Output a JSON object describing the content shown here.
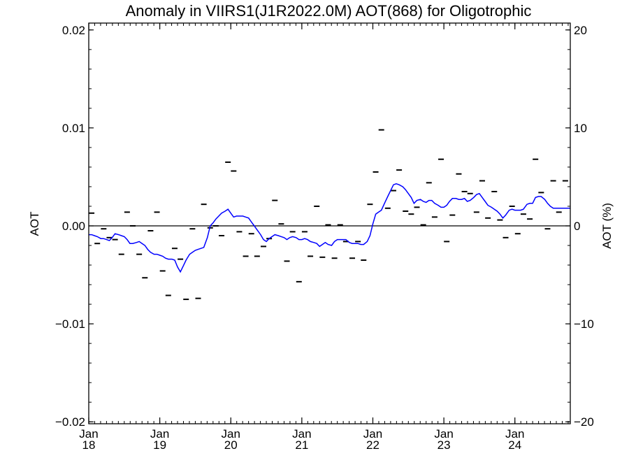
{
  "chart_data": {
    "type": "line",
    "title": "Anomaly in VIIRS1(J1R2022.0M) AOT(868) for Oligotrophic",
    "ylabel": "AOT",
    "ylabel_right": "AOT (%)",
    "xlabel": "",
    "x_range": [
      2018.0,
      2024.78
    ],
    "ylim": [
      -0.0202,
      0.0207
    ],
    "ylim_right": [
      -20.2,
      20.7
    ],
    "y_ticks": [
      {
        "value": 0.02,
        "label": "0.02"
      },
      {
        "value": 0.01,
        "label": "0.01"
      },
      {
        "value": 0.0,
        "label": "0.00"
      },
      {
        "value": -0.01,
        "label": "−0.01"
      },
      {
        "value": -0.02,
        "label": "−0.02"
      }
    ],
    "y_ticks_right": [
      {
        "value": 20,
        "label": "20"
      },
      {
        "value": 10,
        "label": "10"
      },
      {
        "value": 0,
        "label": "0"
      },
      {
        "value": -10,
        "label": "−10"
      },
      {
        "value": -20,
        "label": "−20"
      }
    ],
    "x_ticks": [
      {
        "value": 2018.0,
        "month": "Jan",
        "year": "18"
      },
      {
        "value": 2019.0,
        "month": "Jan",
        "year": "19"
      },
      {
        "value": 2020.0,
        "month": "Jan",
        "year": "20"
      },
      {
        "value": 2021.0,
        "month": "Jan",
        "year": "21"
      },
      {
        "value": 2022.0,
        "month": "Jan",
        "year": "22"
      },
      {
        "value": 2023.0,
        "month": "Jan",
        "year": "23"
      },
      {
        "value": 2024.0,
        "month": "Jan",
        "year": "24"
      }
    ],
    "zero_line": 0.0,
    "grid": false,
    "series": [
      {
        "type": "scatter-dash",
        "color": "#000000",
        "x": [
          2018.04,
          2018.12,
          2018.21,
          2018.29,
          2018.37,
          2018.46,
          2018.54,
          2018.62,
          2018.71,
          2018.79,
          2018.87,
          2018.96,
          2019.04,
          2019.12,
          2019.21,
          2019.29,
          2019.37,
          2019.46,
          2019.54,
          2019.62,
          2019.71,
          2019.79,
          2019.87,
          2019.96,
          2020.04,
          2020.12,
          2020.21,
          2020.29,
          2020.37,
          2020.46,
          2020.54,
          2020.62,
          2020.71,
          2020.79,
          2020.87,
          2020.96,
          2021.04,
          2021.12,
          2021.21,
          2021.29,
          2021.37,
          2021.46,
          2021.54,
          2021.62,
          2021.71,
          2021.79,
          2021.87,
          2021.96,
          2022.04,
          2022.12,
          2022.21,
          2022.29,
          2022.37,
          2022.46,
          2022.54,
          2022.62,
          2022.71,
          2022.79,
          2022.87,
          2022.96,
          2023.04,
          2023.12,
          2023.21,
          2023.29,
          2023.37,
          2023.46,
          2023.54,
          2023.62,
          2023.71,
          2023.79,
          2023.87,
          2023.96,
          2024.04,
          2024.12,
          2024.21,
          2024.29,
          2024.37,
          2024.46,
          2024.54,
          2024.62,
          2024.71
        ],
        "values": [
          0.0013,
          -0.0018,
          -0.0003,
          -0.0012,
          -0.0014,
          -0.0029,
          0.0014,
          0.0,
          -0.0029,
          -0.0053,
          -0.0005,
          0.0014,
          -0.0046,
          -0.0071,
          -0.0023,
          -0.0034,
          -0.0075,
          -0.0003,
          -0.0074,
          0.0022,
          -0.0002,
          0.0,
          -0.001,
          0.0065,
          0.0056,
          -0.0006,
          -0.0031,
          -0.0008,
          -0.0031,
          -0.0021,
          -0.0013,
          0.0026,
          0.0002,
          -0.0036,
          -0.0006,
          -0.0057,
          -0.0006,
          -0.0031,
          0.002,
          -0.0032,
          0.0001,
          -0.0033,
          0.0001,
          -0.0016,
          -0.0033,
          -0.0016,
          -0.0035,
          0.0022,
          0.0055,
          0.0098,
          0.0018,
          0.0036,
          0.0057,
          0.0015,
          0.0012,
          0.0019,
          0.0001,
          0.0044,
          0.0009,
          0.0068,
          -0.0016,
          0.0011,
          0.0053,
          0.0035,
          0.0033,
          0.0014,
          0.0046,
          0.0008,
          0.0035,
          0.0006,
          -0.0012,
          0.002,
          -0.0008,
          0.0012,
          0.0007,
          0.0068,
          0.0034,
          -0.0003,
          0.0046,
          0.0014,
          0.0046
        ]
      },
      {
        "type": "line",
        "color": "#0000ff",
        "x": [
          2018.0,
          2018.04,
          2018.08,
          2018.12,
          2018.17,
          2018.21,
          2018.25,
          2018.29,
          2018.33,
          2018.37,
          2018.42,
          2018.46,
          2018.5,
          2018.54,
          2018.58,
          2018.62,
          2018.67,
          2018.71,
          2018.75,
          2018.79,
          2018.83,
          2018.87,
          2018.92,
          2018.96,
          2019.0,
          2019.04,
          2019.08,
          2019.12,
          2019.17,
          2019.21,
          2019.25,
          2019.29,
          2019.33,
          2019.37,
          2019.42,
          2019.46,
          2019.5,
          2019.54,
          2019.58,
          2019.62,
          2019.67,
          2019.71,
          2019.75,
          2019.79,
          2019.83,
          2019.87,
          2019.92,
          2019.96,
          2020.0,
          2020.04,
          2020.08,
          2020.12,
          2020.17,
          2020.21,
          2020.25,
          2020.29,
          2020.33,
          2020.37,
          2020.42,
          2020.46,
          2020.5,
          2020.54,
          2020.58,
          2020.62,
          2020.67,
          2020.71,
          2020.75,
          2020.79,
          2020.83,
          2020.87,
          2020.92,
          2020.96,
          2021.0,
          2021.04,
          2021.08,
          2021.12,
          2021.17,
          2021.21,
          2021.25,
          2021.29,
          2021.33,
          2021.37,
          2021.42,
          2021.46,
          2021.5,
          2021.54,
          2021.58,
          2021.62,
          2021.67,
          2021.71,
          2021.75,
          2021.79,
          2021.83,
          2021.87,
          2021.92,
          2021.96,
          2022.0,
          2022.04,
          2022.08,
          2022.12,
          2022.17,
          2022.21,
          2022.25,
          2022.29,
          2022.33,
          2022.37,
          2022.42,
          2022.46,
          2022.5,
          2022.54,
          2022.58,
          2022.62,
          2022.67,
          2022.71,
          2022.75,
          2022.79,
          2022.83,
          2022.87,
          2022.92,
          2022.96,
          2023.0,
          2023.04,
          2023.08,
          2023.12,
          2023.17,
          2023.21,
          2023.25,
          2023.29,
          2023.33,
          2023.37,
          2023.42,
          2023.46,
          2023.5,
          2023.54,
          2023.58,
          2023.62,
          2023.67,
          2023.71,
          2023.75,
          2023.79,
          2023.83,
          2023.87,
          2023.92,
          2023.96,
          2024.0,
          2024.04,
          2024.08,
          2024.12,
          2024.17,
          2024.21,
          2024.25,
          2024.29,
          2024.33,
          2024.37,
          2024.42,
          2024.46,
          2024.5,
          2024.54,
          2024.58,
          2024.62,
          2024.67,
          2024.71,
          2024.75,
          2024.78
        ],
        "values": [
          -0.0009,
          -0.0009,
          -0.001,
          -0.0011,
          -0.0013,
          -0.0013,
          -0.0014,
          -0.0015,
          -0.0012,
          -0.0008,
          -0.0009,
          -0.001,
          -0.0011,
          -0.0014,
          -0.0018,
          -0.0018,
          -0.0017,
          -0.0016,
          -0.0018,
          -0.002,
          -0.0024,
          -0.0027,
          -0.0029,
          -0.0029,
          -0.003,
          -0.0031,
          -0.0033,
          -0.0034,
          -0.0034,
          -0.0035,
          -0.0042,
          -0.0047,
          -0.0041,
          -0.0035,
          -0.0029,
          -0.0027,
          -0.0025,
          -0.0024,
          -0.0023,
          -0.0022,
          -0.0012,
          0.0,
          0.0003,
          0.0007,
          0.001,
          0.0013,
          0.0015,
          0.0017,
          0.0013,
          0.0009,
          0.001,
          0.001,
          0.001,
          0.0009,
          0.0008,
          0.0004,
          0.0,
          -0.0004,
          -0.0009,
          -0.0014,
          -0.0016,
          -0.0013,
          -0.0011,
          -0.0009,
          -0.001,
          -0.0011,
          -0.0012,
          -0.0014,
          -0.0012,
          -0.0011,
          -0.0012,
          -0.0014,
          -0.0014,
          -0.0013,
          -0.0014,
          -0.0016,
          -0.0017,
          -0.0018,
          -0.0021,
          -0.0019,
          -0.0017,
          -0.0019,
          -0.002,
          -0.0016,
          -0.0014,
          -0.0014,
          -0.0014,
          -0.0014,
          -0.0017,
          -0.0018,
          -0.0018,
          -0.0018,
          -0.0019,
          -0.0019,
          -0.0016,
          -0.001,
          0.0002,
          0.0012,
          0.0014,
          0.0016,
          0.0024,
          0.003,
          0.0036,
          0.0042,
          0.0043,
          0.0042,
          0.004,
          0.0037,
          0.0033,
          0.0029,
          0.0023,
          0.0026,
          0.0027,
          0.0025,
          0.0024,
          0.0026,
          0.0026,
          0.0023,
          0.0021,
          0.0019,
          0.0019,
          0.0021,
          0.0025,
          0.0028,
          0.0028,
          0.0027,
          0.0027,
          0.0028,
          0.0025,
          0.0026,
          0.0029,
          0.0032,
          0.0033,
          0.0029,
          0.0025,
          0.0021,
          0.0019,
          0.0017,
          0.0015,
          0.0012,
          0.0008,
          0.0011,
          0.0016,
          0.0017,
          0.0016,
          0.0016,
          0.0016,
          0.0017,
          0.0022,
          0.0023,
          0.0023,
          0.0029,
          0.003,
          0.003,
          0.0027,
          0.0023,
          0.002,
          0.0018,
          0.0018,
          0.0018,
          0.0018,
          0.0018,
          0.0018,
          0.0018
        ]
      }
    ]
  }
}
